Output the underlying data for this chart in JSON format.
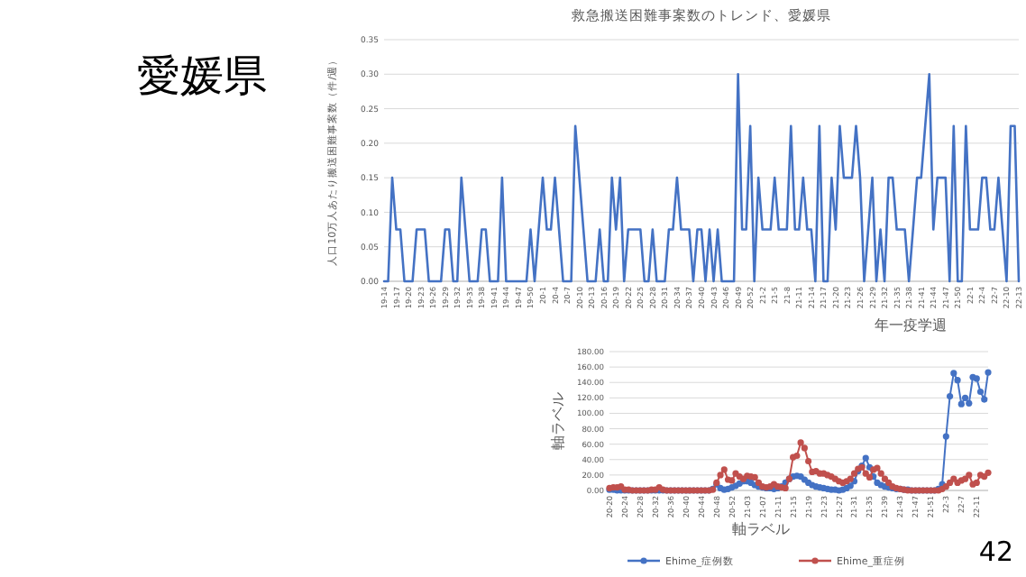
{
  "chart_data": [
    {
      "type": "line",
      "title": "救急搬送困難事案数のトレンド、愛媛県",
      "xlabel": "年一疫学週",
      "ylabel": "人口10万人あたり搬送困難事案数（件/週）",
      "annotations": [
        "愛媛県"
      ],
      "categories": [
        "19-14",
        null,
        null,
        "19-17",
        null,
        null,
        "19-20",
        null,
        null,
        "19-23",
        null,
        null,
        "19-26",
        null,
        null,
        "19-29",
        null,
        null,
        "19-32",
        null,
        null,
        "19-35",
        null,
        null,
        "19-38",
        null,
        null,
        "19-41",
        null,
        null,
        "19-44",
        null,
        null,
        "19-47",
        null,
        null,
        "19-50",
        null,
        null,
        "20-1",
        null,
        null,
        "20-4",
        null,
        null,
        "20-7",
        null,
        null,
        "20-10",
        null,
        null,
        "20-13",
        null,
        null,
        "20-16",
        null,
        null,
        "20-19",
        null,
        null,
        "20-22",
        null,
        null,
        "20-25",
        null,
        null,
        "20-28",
        null,
        null,
        "20-31",
        null,
        null,
        "20-34",
        null,
        null,
        "20-37",
        null,
        null,
        "20-40",
        null,
        null,
        "20-43",
        null,
        null,
        "20-46",
        null,
        null,
        "20-49",
        null,
        null,
        "20-52",
        null,
        null,
        "21-2",
        null,
        null,
        "21-5",
        null,
        null,
        "21-8",
        null,
        null,
        "21-11",
        null,
        null,
        "21-14",
        null,
        null,
        "21-17",
        null,
        null,
        "21-20",
        null,
        null,
        "21-23",
        null,
        null,
        "21-26",
        null,
        null,
        "21-29",
        null,
        null,
        "21-32",
        null,
        null,
        "21-35",
        null,
        null,
        "21-38",
        null,
        null,
        "21-41",
        null,
        null,
        "21-44",
        null,
        null,
        "21-47",
        null,
        null,
        "21-50",
        null,
        null,
        "22-1",
        null,
        null,
        "22-4",
        null,
        null,
        "22-7",
        null,
        null,
        "22-10",
        null,
        null,
        "22-13"
      ],
      "series": [
        {
          "color": "#4472c4",
          "values": [
            0,
            0,
            0.15,
            0.075,
            0.075,
            0,
            0,
            0,
            0.075,
            0.075,
            0.075,
            0,
            0,
            0,
            0,
            0.075,
            0.075,
            0,
            0,
            0.15,
            0.075,
            0,
            0,
            0,
            0.075,
            0.075,
            0,
            0,
            0,
            0.15,
            0,
            0,
            0,
            0,
            0,
            0,
            0.075,
            0,
            0.075,
            0.15,
            0.075,
            0.075,
            0.15,
            0.075,
            0,
            0,
            0,
            0.225,
            0.15,
            0.075,
            0,
            0,
            0,
            0.075,
            0,
            0,
            0.15,
            0.075,
            0.15,
            0,
            0.075,
            0.075,
            0.075,
            0.075,
            0,
            0,
            0.075,
            0,
            0,
            0,
            0.075,
            0.075,
            0.15,
            0.075,
            0.075,
            0.075,
            0,
            0.075,
            0.075,
            0,
            0.075,
            0,
            0.075,
            0,
            0,
            0,
            0,
            0.3,
            0.075,
            0.075,
            0.225,
            0,
            0.15,
            0.075,
            0.075,
            0.075,
            0.15,
            0.075,
            0.075,
            0.075,
            0.225,
            0.075,
            0.075,
            0.15,
            0.075,
            0.075,
            0,
            0.225,
            0,
            0,
            0.15,
            0.075,
            0.225,
            0.15,
            0.15,
            0.15,
            0.225,
            0.15,
            0,
            0.075,
            0.15,
            0,
            0.075,
            0,
            0.15,
            0.15,
            0.075,
            0.075,
            0.075,
            0,
            0.075,
            0.15,
            0.15,
            0.225,
            0.3,
            0.075,
            0.15,
            0.15,
            0.15,
            0,
            0.225,
            0,
            0,
            0.225,
            0.075,
            0.075,
            0.075,
            0.15,
            0.15,
            0.075,
            0.075,
            0.15,
            0.075,
            0,
            0.225,
            0.225,
            0
          ]
        }
      ],
      "ylim": [
        0,
        0.35
      ],
      "yticks": [
        {
          "value": 0,
          "label": "0.00"
        },
        {
          "value": 0.05,
          "label": "0.05"
        },
        {
          "value": 0.1,
          "label": "0.10"
        },
        {
          "value": 0.15,
          "label": "0.15"
        },
        {
          "value": 0.2,
          "label": "0.20"
        },
        {
          "value": 0.25,
          "label": "0.25"
        },
        {
          "value": 0.3,
          "label": "0.30"
        },
        {
          "value": 0.35,
          "label": "0.35"
        }
      ],
      "grid": "y",
      "marker": "none",
      "line_style": "solid"
    },
    {
      "type": "line",
      "xlabel": "軸ラベル",
      "ylabel": "軸ラベル",
      "annotations": [
        "42"
      ],
      "categories": [
        "20-20",
        null,
        null,
        null,
        "20-24",
        null,
        null,
        null,
        "20-28",
        null,
        null,
        null,
        "20-32",
        null,
        null,
        null,
        "20-36",
        null,
        null,
        null,
        "20-40",
        null,
        null,
        null,
        "20-44",
        null,
        null,
        null,
        "20-48",
        null,
        null,
        null,
        "20-52",
        null,
        null,
        null,
        "21-03",
        null,
        null,
        null,
        "21-07",
        null,
        null,
        null,
        "21-11",
        null,
        null,
        null,
        "21-15",
        null,
        null,
        null,
        "21-19",
        null,
        null,
        null,
        "21-23",
        null,
        null,
        null,
        "21-27",
        null,
        null,
        null,
        "21-31",
        null,
        null,
        null,
        "21-35",
        null,
        null,
        null,
        "21-39",
        null,
        null,
        null,
        "21-43",
        null,
        null,
        null,
        "21-47",
        null,
        null,
        null,
        "21-51",
        null,
        null,
        null,
        "22-3",
        null,
        null,
        null,
        "22-7",
        null,
        null,
        null,
        "22-11",
        null,
        null,
        null
      ],
      "series": [
        {
          "name": "Ehime_症例数",
          "color": "#4472c4",
          "values": [
            1,
            1,
            0,
            0,
            0,
            0,
            0,
            0,
            0,
            0,
            0,
            0,
            0,
            0,
            0,
            0,
            0,
            0,
            0,
            0,
            0,
            0,
            0,
            0,
            0,
            0,
            0,
            2,
            8,
            3,
            1,
            2,
            4,
            6,
            9,
            12,
            12,
            10,
            7,
            5,
            4,
            3,
            3,
            2,
            3,
            5,
            10,
            15,
            18,
            19,
            18,
            14,
            10,
            7,
            5,
            4,
            3,
            2,
            1,
            1,
            0,
            1,
            3,
            6,
            12,
            25,
            32,
            42,
            30,
            18,
            10,
            7,
            5,
            4,
            3,
            2,
            2,
            1,
            1,
            0,
            0,
            0,
            0,
            0,
            0,
            0,
            2,
            8,
            70,
            122,
            152,
            143,
            112,
            120,
            113,
            147,
            145,
            128,
            118,
            153
          ]
        },
        {
          "name": "Ehime_重症例",
          "color": "#c0504d",
          "values": [
            3,
            4,
            4,
            5,
            1,
            1,
            0,
            0,
            0,
            0,
            0,
            1,
            1,
            4,
            1,
            0,
            0,
            0,
            0,
            0,
            0,
            0,
            0,
            0,
            0,
            0,
            0,
            1,
            10,
            20,
            27,
            14,
            13,
            22,
            18,
            15,
            19,
            18,
            17,
            10,
            5,
            4,
            5,
            8,
            5,
            4,
            3,
            15,
            43,
            45,
            62,
            55,
            38,
            24,
            25,
            22,
            22,
            20,
            18,
            15,
            12,
            10,
            12,
            15,
            22,
            28,
            30,
            22,
            17,
            27,
            29,
            22,
            15,
            10,
            5,
            3,
            2,
            1,
            0,
            0,
            0,
            0,
            0,
            0,
            0,
            0,
            0,
            2,
            5,
            10,
            15,
            10,
            13,
            15,
            20,
            8,
            10,
            20,
            18,
            23
          ]
        }
      ],
      "ylim": [
        0,
        180
      ],
      "yticks": [
        {
          "value": 0,
          "label": "0.00"
        },
        {
          "value": 20,
          "label": "20.00"
        },
        {
          "value": 40,
          "label": "40.00"
        },
        {
          "value": 60,
          "label": "60.00"
        },
        {
          "value": 80,
          "label": "80.00"
        },
        {
          "value": 100,
          "label": "100.00"
        },
        {
          "value": 120,
          "label": "120.00"
        },
        {
          "value": 140,
          "label": "140.00"
        },
        {
          "value": 160,
          "label": "160.00"
        },
        {
          "value": 180,
          "label": "180.00"
        }
      ],
      "grid": "y",
      "legend": "bottom",
      "marker": "circle",
      "line_style": "solid"
    }
  ]
}
